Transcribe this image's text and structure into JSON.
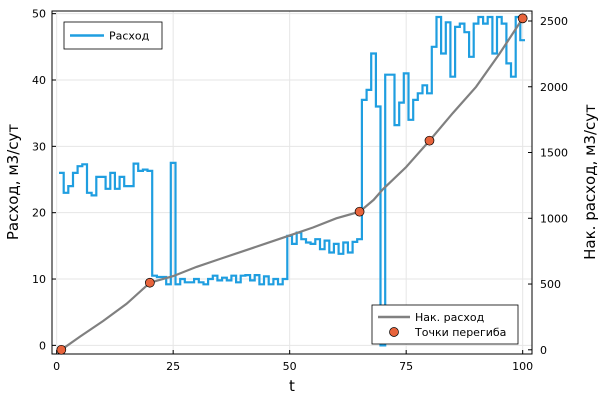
{
  "chart_data": {
    "type": "line",
    "xlabel": "t",
    "ylabel": "Расход, м3/сут",
    "y2label": "Нак. расход, м3/сут",
    "xlim": [
      -1,
      102
    ],
    "ylim": [
      -1.3,
      50.4
    ],
    "y2lim": [
      -32,
      2576
    ],
    "xticks": [
      0,
      25,
      50,
      75,
      100
    ],
    "yticks": [
      0,
      10,
      20,
      30,
      40,
      50
    ],
    "y2ticks": [
      0,
      500,
      1000,
      1500,
      2000,
      2500
    ],
    "grid": true,
    "legend_left": "top-left",
    "legend_right": "bottom-right",
    "series": [
      {
        "name": "Расход",
        "axis": "left",
        "style": "step",
        "color": "#1f9ee0",
        "x": [
          1,
          2,
          3,
          4,
          5,
          6,
          7,
          8,
          9,
          10,
          11,
          12,
          13,
          14,
          15,
          16,
          17,
          18,
          19,
          20,
          21,
          22,
          23,
          24,
          25,
          26,
          27,
          28,
          29,
          30,
          31,
          32,
          33,
          34,
          35,
          36,
          37,
          38,
          39,
          40,
          41,
          42,
          43,
          44,
          45,
          46,
          47,
          48,
          49,
          50,
          51,
          52,
          53,
          54,
          55,
          56,
          57,
          58,
          59,
          60,
          61,
          62,
          63,
          64,
          65,
          66,
          67,
          68,
          69,
          70,
          71,
          72,
          73,
          74,
          75,
          76,
          77,
          78,
          79,
          80,
          81,
          82,
          83,
          84,
          85,
          86,
          87,
          88,
          89,
          90,
          91,
          92,
          93,
          94,
          95,
          96,
          97,
          98,
          99,
          100
        ],
        "values": [
          26,
          23,
          24,
          26,
          27,
          27.3,
          23,
          22.6,
          25.4,
          25.4,
          23.6,
          26,
          23.6,
          25.4,
          24,
          24,
          27.4,
          26.3,
          26.5,
          26.3,
          10.5,
          10.3,
          10.3,
          9.2,
          27.5,
          9.2,
          10,
          9.5,
          9.5,
          10,
          9.5,
          9.2,
          10,
          10.5,
          9.8,
          10.2,
          9.8,
          10.5,
          9.5,
          10.5,
          10.6,
          9.8,
          10.6,
          9.2,
          10.4,
          9.2,
          10,
          9.2,
          10,
          16.5,
          15.3,
          17,
          16,
          15.5,
          15.3,
          16,
          14.5,
          15.8,
          14,
          15.3,
          13.8,
          15.5,
          14,
          15.6,
          16,
          37,
          38.5,
          44,
          36,
          0,
          40.8,
          40.8,
          33.2,
          36.6,
          41,
          34,
          37,
          38,
          39.2,
          38,
          45,
          49.5,
          44,
          48.7,
          40.5,
          48,
          48.5,
          47.2,
          43.5,
          48.5,
          49.5,
          48.5,
          49.5,
          44,
          49.5,
          48.5,
          42.5,
          40.5,
          49.5,
          46
        ]
      },
      {
        "name": "Нак. расход",
        "axis": "right",
        "style": "line",
        "color": "#808080",
        "x": [
          1,
          5,
          10,
          15,
          20,
          25,
          30,
          35,
          40,
          45,
          50,
          55,
          60,
          65,
          68,
          70,
          75,
          80,
          85,
          90,
          95,
          100
        ],
        "values": [
          0,
          100,
          220,
          350,
          510,
          560,
          630,
          690,
          750,
          810,
          870,
          930,
          1000,
          1050,
          1140,
          1220,
          1390,
          1590,
          1800,
          2000,
          2250,
          2520
        ]
      }
    ],
    "points": {
      "name": "Точки перегиба",
      "axis": "right",
      "color": "#e8643c",
      "x": [
        1,
        20,
        65,
        80,
        100
      ],
      "values": [
        0,
        510,
        1050,
        1590,
        2520
      ]
    }
  }
}
